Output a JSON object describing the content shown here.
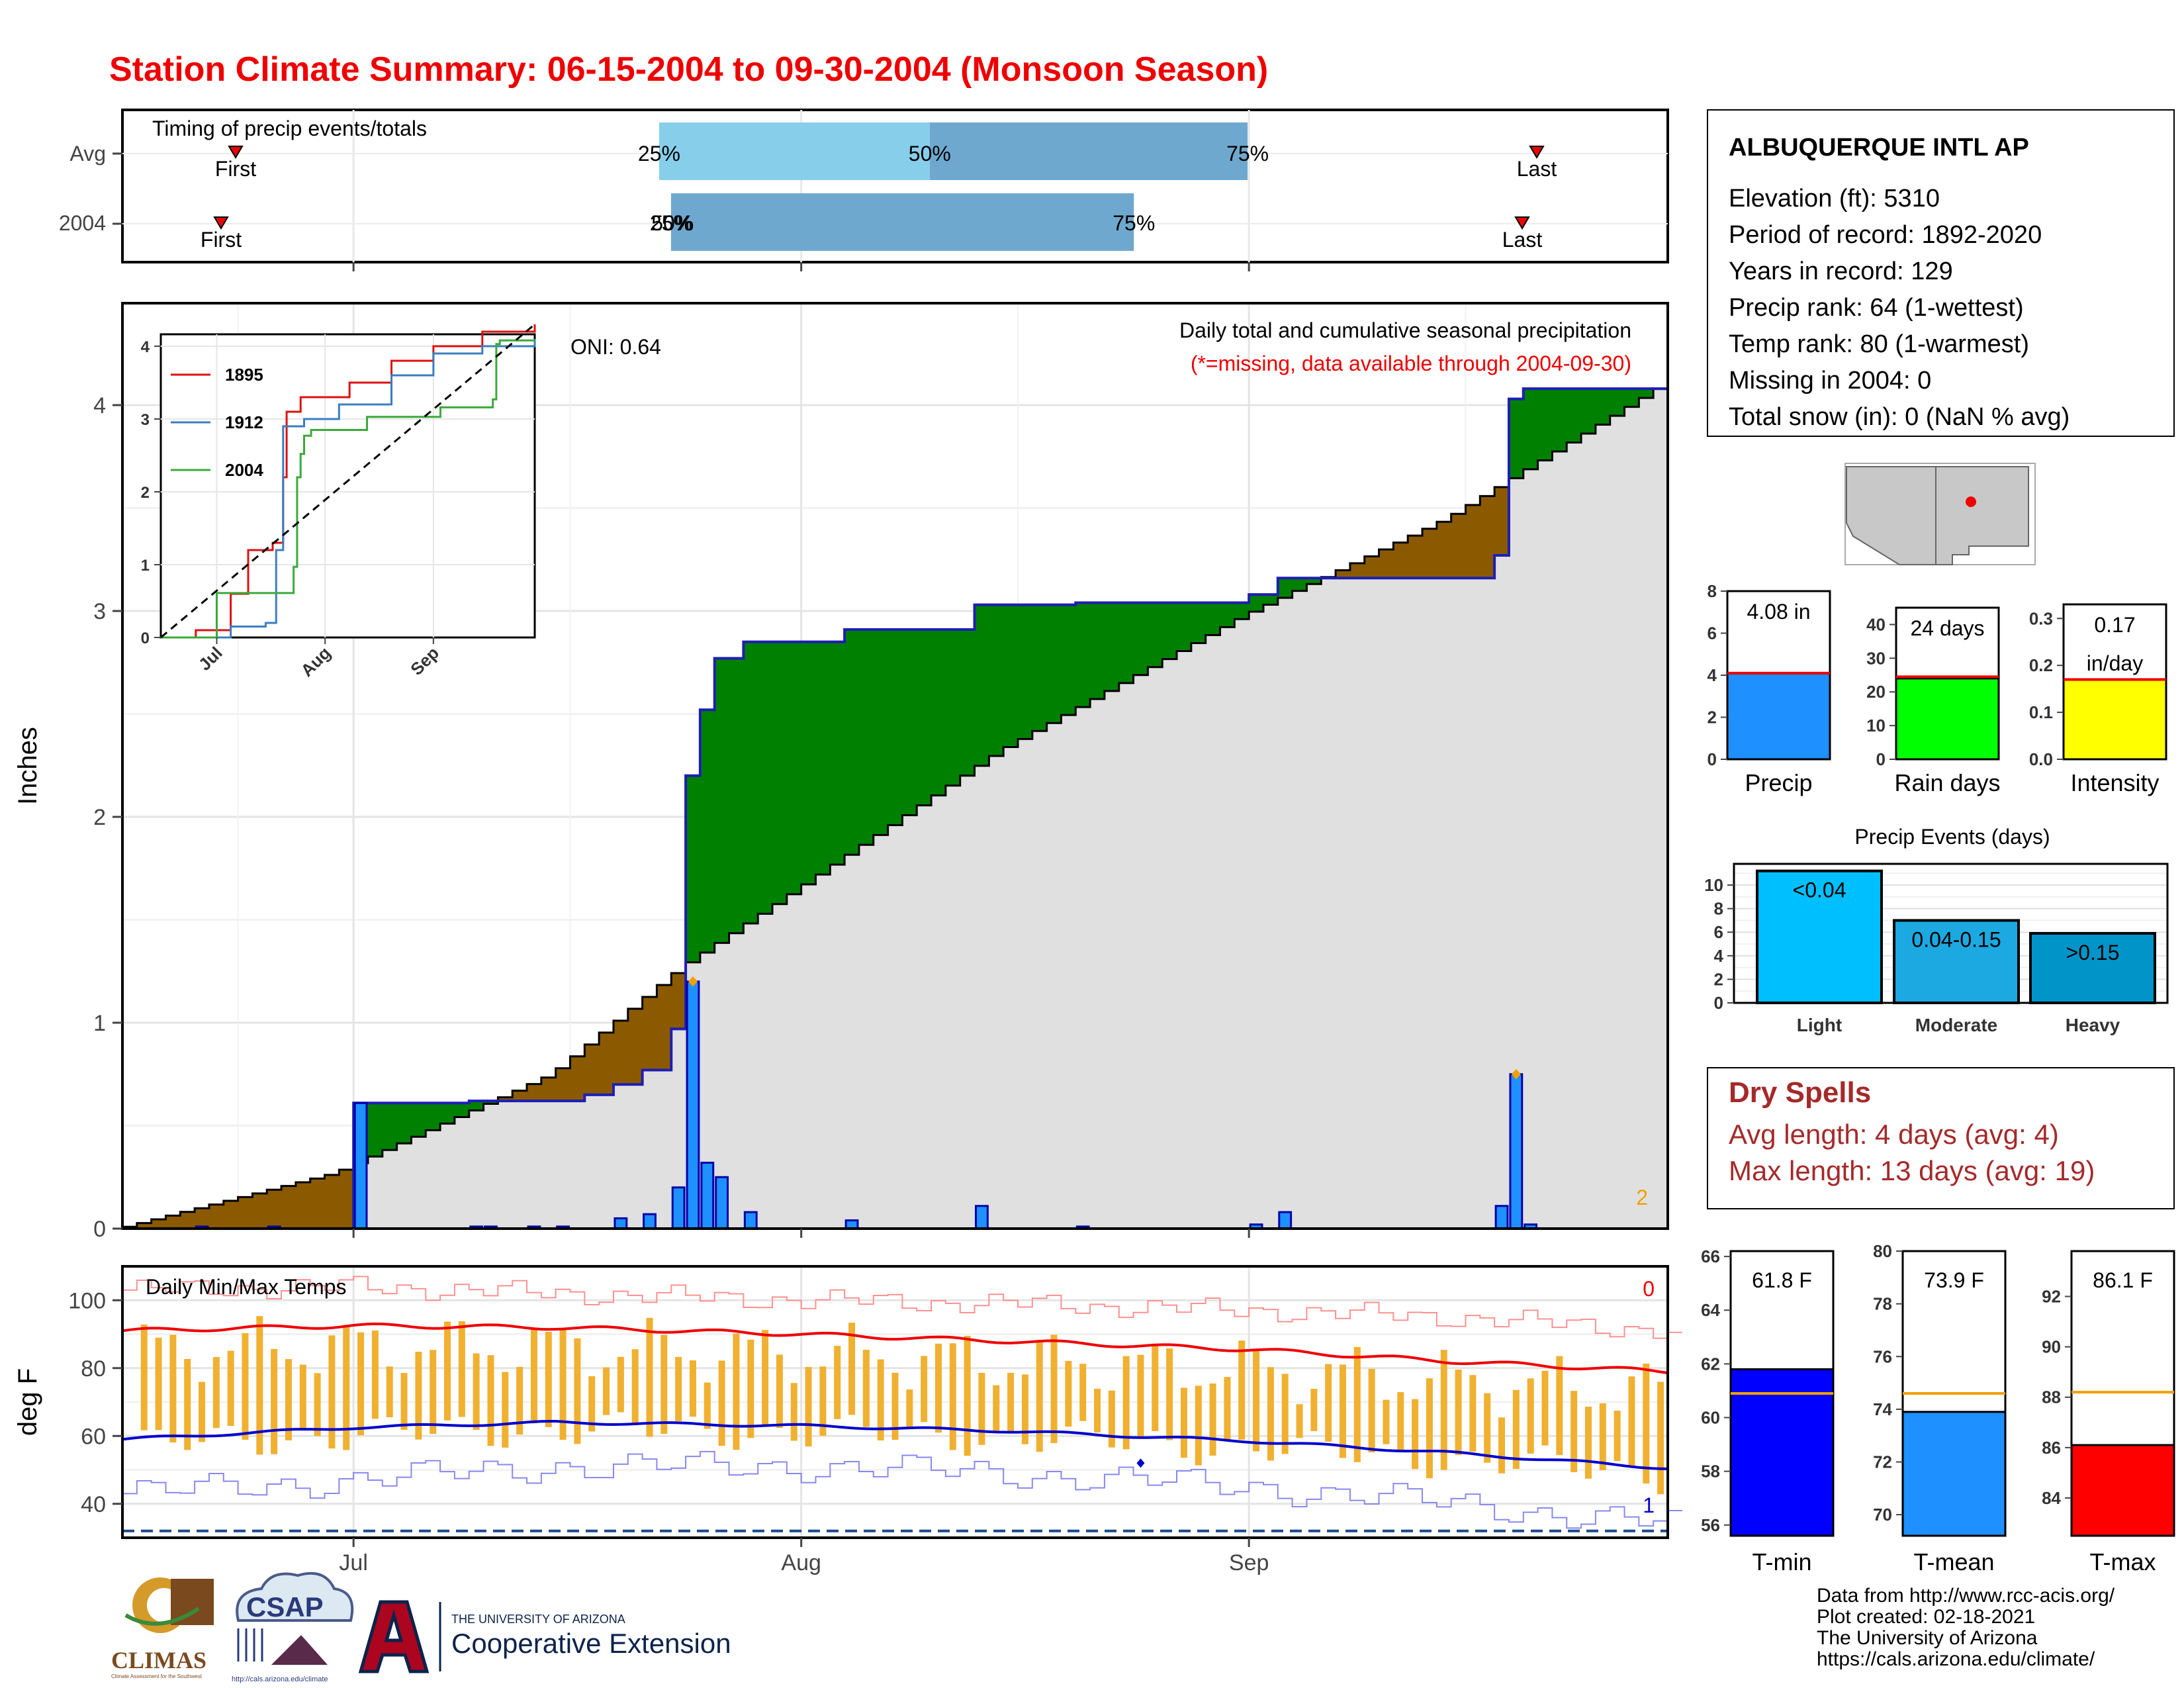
{
  "title": "Station Climate Summary: 06-15-2004 to 09-30-2004 (Monsoon Season)",
  "colors": {
    "title": "#ee0000",
    "dry": "#8b5a00",
    "wet": "#008000",
    "fill": "#e0e0e0",
    "step_line": "#1e1eb4",
    "precip_bar": "#1e90ff",
    "temp_bar": "#f0b030",
    "tmax": "#ee0000",
    "tmin": "#0000cc",
    "record_max": "#ff9090",
    "record_min": "#8888ee",
    "dry_spell_text": "#a52a2a"
  },
  "timing": {
    "label": "Timing of precip events/totals",
    "rows": [
      {
        "name": "Avg",
        "first_label": "First",
        "last_label": "Last",
        "q25": "25%",
        "q50": "50%",
        "q75": "75%"
      },
      {
        "name": "2004",
        "first_label": "First",
        "last_label": "Last",
        "q25": "25%",
        "q50": "50%",
        "q75": "75%"
      }
    ]
  },
  "precip_panel": {
    "ylabel": "Inches",
    "yticks": [
      "0",
      "1",
      "2",
      "3",
      "4"
    ],
    "oni": "ONI: 0.64",
    "subtitle": "Daily total and cumulative seasonal precipitation",
    "missing_note": "(*=missing, data available through 2004-09-30)",
    "corner_count": "2"
  },
  "inset": {
    "yticks": [
      "0",
      "1",
      "2",
      "3",
      "4"
    ],
    "xticks": [
      "Jul",
      "Aug",
      "Sep"
    ],
    "legend": [
      "1895",
      "1912",
      "2004"
    ]
  },
  "temp_panel": {
    "label": "Daily Min/Max Temps",
    "ylabel": "deg F",
    "yticks": [
      "40",
      "60",
      "80",
      "100"
    ],
    "record_high_count": "0",
    "record_low_count": "1"
  },
  "xaxis": {
    "ticks": [
      "Jul",
      "Aug",
      "Sep"
    ]
  },
  "station": {
    "name": "ALBUQUERQUE INTL AP",
    "lines": [
      "Elevation (ft): 5310",
      "Period of record: 1892-2020",
      "Years in record: 129",
      "Precip rank: 64 (1-wettest)",
      "Temp rank: 80 (1-warmest)",
      "Missing in 2004: 0",
      "Total snow (in): 0 (NaN % avg)"
    ]
  },
  "summary_bars": [
    {
      "name": "Precip",
      "value_label": "4.08 in",
      "value": 4.08,
      "avg": 4.1,
      "ymax": 8,
      "ticks": [
        "0",
        "2",
        "4",
        "6",
        "8"
      ],
      "color": "#1e90ff"
    },
    {
      "name": "Rain days",
      "value_label": "24 days",
      "value": 24,
      "avg": 24.5,
      "ymax": 45,
      "ticks": [
        "0",
        "10",
        "20",
        "30",
        "40"
      ],
      "color": "#00ff00"
    },
    {
      "name": "Intensity",
      "value_label": "0.17",
      "value_label2": "in/day",
      "value": 0.17,
      "avg": 0.17,
      "ymax": 0.33,
      "ticks": [
        "0.0",
        "0.1",
        "0.2",
        "0.3"
      ],
      "color": "#ffff00"
    }
  ],
  "precip_events": {
    "title": "Precip Events (days)",
    "yticks": [
      "0",
      "2",
      "4",
      "6",
      "8",
      "10"
    ],
    "bars": [
      {
        "cat": "Light",
        "label": "<0.04",
        "value": 11.2,
        "color": "#00bfff"
      },
      {
        "cat": "Moderate",
        "label": "0.04-0.15",
        "value": 7.0,
        "color": "#1ca8e0"
      },
      {
        "cat": "Heavy",
        "label": ">0.15",
        "value": 5.9,
        "color": "#0094c8"
      }
    ]
  },
  "dry_spells": {
    "title": "Dry Spells",
    "avg_line": "Avg length: 4 days (avg: 4)",
    "max_line": "Max length: 13 days (avg: 19)"
  },
  "temp_bars": [
    {
      "name": "T-min",
      "value_label": "61.8 F",
      "value": 61.8,
      "avg": 60.9,
      "ymin": 55.6,
      "ymax": 66.2,
      "ticks": [
        "56",
        "58",
        "60",
        "62",
        "64",
        "66"
      ],
      "color": "#0000ff"
    },
    {
      "name": "T-mean",
      "value_label": "73.9 F",
      "value": 73.9,
      "avg": 74.6,
      "ymin": 69.2,
      "ymax": 80.0,
      "ticks": [
        "70",
        "72",
        "74",
        "76",
        "78",
        "80"
      ],
      "color": "#1e90ff"
    },
    {
      "name": "T-max",
      "value_label": "86.1 F",
      "value": 86.1,
      "avg": 88.2,
      "ymin": 82.5,
      "ymax": 93.8,
      "ticks": [
        "84",
        "86",
        "88",
        "90",
        "92"
      ],
      "color": "#ff0000"
    }
  ],
  "footer": {
    "lines": [
      "Data from http://www.rcc-acis.org/",
      "Plot created: 02-18-2021",
      "The University of Arizona",
      "https://cals.arizona.edu/climate/"
    ],
    "logo_climas": "CLIMAS",
    "logo_climas_sub": "Climate Assessment for the Southwest",
    "logo_csap": "CSAP",
    "logo_csap_url": "http://cals.arizona.edu/climate",
    "logo_ua_top": "THE UNIVERSITY OF ARIZONA",
    "logo_ua_bottom": "Cooperative Extension"
  },
  "chart_data": [
    {
      "type": "bar",
      "title": "Daily total and cumulative seasonal precipitation",
      "ylabel": "Inches",
      "ylim": [
        0,
        4.5
      ],
      "xrange": [
        "2004-06-15",
        "2004-09-30"
      ],
      "daily_precip": [
        {
          "date": "2004-06-20",
          "value": 0.01
        },
        {
          "date": "2004-06-25",
          "value": 0.01
        },
        {
          "date": "2004-07-01",
          "value": 0.61
        },
        {
          "date": "2004-07-09",
          "value": 0.01
        },
        {
          "date": "2004-07-10",
          "value": 0.01
        },
        {
          "date": "2004-07-13",
          "value": 0.01
        },
        {
          "date": "2004-07-15",
          "value": 0.01
        },
        {
          "date": "2004-07-19",
          "value": 0.05
        },
        {
          "date": "2004-07-21",
          "value": 0.07
        },
        {
          "date": "2004-07-23",
          "value": 0.2
        },
        {
          "date": "2004-07-24",
          "value": 1.2
        },
        {
          "date": "2004-07-25",
          "value": 0.32
        },
        {
          "date": "2004-07-26",
          "value": 0.25
        },
        {
          "date": "2004-07-28",
          "value": 0.08
        },
        {
          "date": "2004-08-04",
          "value": 0.04
        },
        {
          "date": "2004-08-13",
          "value": 0.11
        },
        {
          "date": "2004-08-20",
          "value": 0.01
        },
        {
          "date": "2004-09-01",
          "value": 0.02
        },
        {
          "date": "2004-09-03",
          "value": 0.08
        },
        {
          "date": "2004-09-18",
          "value": 0.11
        },
        {
          "date": "2004-09-19",
          "value": 0.75
        },
        {
          "date": "2004-09-20",
          "value": 0.02
        }
      ],
      "cumulative_2004": [
        {
          "date": "2004-06-15",
          "value": 0.0
        },
        {
          "date": "2004-07-01",
          "value": 0.61
        },
        {
          "date": "2004-07-09",
          "value": 0.62
        },
        {
          "date": "2004-07-17",
          "value": 0.65
        },
        {
          "date": "2004-07-19",
          "value": 0.7
        },
        {
          "date": "2004-07-21",
          "value": 0.77
        },
        {
          "date": "2004-07-23",
          "value": 0.97
        },
        {
          "date": "2004-07-24",
          "value": 2.2
        },
        {
          "date": "2004-07-25",
          "value": 2.52
        },
        {
          "date": "2004-07-26",
          "value": 2.77
        },
        {
          "date": "2004-07-28",
          "value": 2.85
        },
        {
          "date": "2004-08-04",
          "value": 2.91
        },
        {
          "date": "2004-08-13",
          "value": 3.03
        },
        {
          "date": "2004-08-20",
          "value": 3.04
        },
        {
          "date": "2004-09-01",
          "value": 3.08
        },
        {
          "date": "2004-09-03",
          "value": 3.16
        },
        {
          "date": "2004-09-18",
          "value": 3.27
        },
        {
          "date": "2004-09-19",
          "value": 4.03
        },
        {
          "date": "2004-09-20",
          "value": 4.08
        }
      ],
      "average_cumulative": [
        {
          "date": "2004-06-15",
          "value": 0.0
        },
        {
          "date": "2004-06-30",
          "value": 0.27
        },
        {
          "date": "2004-07-15",
          "value": 0.75
        },
        {
          "date": "2004-07-24",
          "value": 1.27
        },
        {
          "date": "2004-07-31",
          "value": 1.6
        },
        {
          "date": "2004-08-15",
          "value": 2.32
        },
        {
          "date": "2004-09-01",
          "value": 2.98
        },
        {
          "date": "2004-09-15",
          "value": 3.45
        },
        {
          "date": "2004-09-30",
          "value": 4.1
        }
      ]
    },
    {
      "type": "line",
      "title": "",
      "legend": [
        "1895",
        "1912",
        "2004"
      ],
      "ylim": [
        0,
        4.2
      ],
      "series": [
        {
          "name": "1895",
          "points": [
            {
              "date": "2004-06-15",
              "value": 0
            },
            {
              "date": "2004-06-25",
              "value": 0.1
            },
            {
              "date": "2004-07-05",
              "value": 0.6
            },
            {
              "date": "2004-07-10",
              "value": 1.2
            },
            {
              "date": "2004-07-17",
              "value": 1.3
            },
            {
              "date": "2004-07-20",
              "value": 2.2
            },
            {
              "date": "2004-07-21",
              "value": 3.1
            },
            {
              "date": "2004-07-25",
              "value": 3.3
            },
            {
              "date": "2004-08-08",
              "value": 3.5
            },
            {
              "date": "2004-08-20",
              "value": 3.8
            },
            {
              "date": "2004-09-01",
              "value": 4.0
            },
            {
              "date": "2004-09-15",
              "value": 4.2
            },
            {
              "date": "2004-09-30",
              "value": 4.3
            }
          ]
        },
        {
          "name": "1912",
          "points": [
            {
              "date": "2004-06-15",
              "value": 0
            },
            {
              "date": "2004-07-05",
              "value": 0.15
            },
            {
              "date": "2004-07-15",
              "value": 0.2
            },
            {
              "date": "2004-07-18",
              "value": 1.2
            },
            {
              "date": "2004-07-20",
              "value": 2.9
            },
            {
              "date": "2004-07-26",
              "value": 3.0
            },
            {
              "date": "2004-08-05",
              "value": 3.2
            },
            {
              "date": "2004-08-20",
              "value": 3.6
            },
            {
              "date": "2004-09-01",
              "value": 3.9
            },
            {
              "date": "2004-09-15",
              "value": 4.0
            },
            {
              "date": "2004-09-30",
              "value": 4.1
            }
          ]
        },
        {
          "name": "2004",
          "points": [
            {
              "date": "2004-06-15",
              "value": 0
            },
            {
              "date": "2004-07-01",
              "value": 0.61
            },
            {
              "date": "2004-07-23",
              "value": 0.97
            },
            {
              "date": "2004-07-24",
              "value": 2.2
            },
            {
              "date": "2004-07-25",
              "value": 2.52
            },
            {
              "date": "2004-07-26",
              "value": 2.77
            },
            {
              "date": "2004-07-28",
              "value": 2.85
            },
            {
              "date": "2004-08-13",
              "value": 3.03
            },
            {
              "date": "2004-09-03",
              "value": 3.16
            },
            {
              "date": "2004-09-18",
              "value": 3.27
            },
            {
              "date": "2004-09-19",
              "value": 4.03
            },
            {
              "date": "2004-09-20",
              "value": 4.08
            }
          ]
        }
      ]
    },
    {
      "type": "bar",
      "title": "Daily Min/Max Temps",
      "ylabel": "deg F",
      "ylim": [
        30,
        110
      ],
      "avg_tmax": [
        {
          "date": "2004-06-15",
          "value": 91
        },
        {
          "date": "2004-07-01",
          "value": 92.5
        },
        {
          "date": "2004-07-15",
          "value": 92
        },
        {
          "date": "2004-08-01",
          "value": 90
        },
        {
          "date": "2004-08-15",
          "value": 88
        },
        {
          "date": "2004-09-01",
          "value": 85.5
        },
        {
          "date": "2004-09-15",
          "value": 82
        },
        {
          "date": "2004-09-30",
          "value": 79
        }
      ],
      "avg_tmin": [
        {
          "date": "2004-06-15",
          "value": 59
        },
        {
          "date": "2004-07-01",
          "value": 62.5
        },
        {
          "date": "2004-07-15",
          "value": 64
        },
        {
          "date": "2004-08-01",
          "value": 63
        },
        {
          "date": "2004-08-15",
          "value": 61.5
        },
        {
          "date": "2004-09-01",
          "value": 58.5
        },
        {
          "date": "2004-09-15",
          "value": 55
        },
        {
          "date": "2004-09-30",
          "value": 50.5
        }
      ],
      "record_tmax": [
        {
          "date": "2004-06-15",
          "value": 103
        },
        {
          "date": "2004-07-01",
          "value": 104
        },
        {
          "date": "2004-07-15",
          "value": 102
        },
        {
          "date": "2004-08-01",
          "value": 100
        },
        {
          "date": "2004-08-15",
          "value": 99
        },
        {
          "date": "2004-09-01",
          "value": 97
        },
        {
          "date": "2004-09-15",
          "value": 95
        },
        {
          "date": "2004-09-30",
          "value": 91
        }
      ],
      "record_tmin": [
        {
          "date": "2004-06-15",
          "value": 43
        },
        {
          "date": "2004-07-01",
          "value": 47
        },
        {
          "date": "2004-07-15",
          "value": 51
        },
        {
          "date": "2004-08-01",
          "value": 51
        },
        {
          "date": "2004-08-15",
          "value": 49
        },
        {
          "date": "2004-09-01",
          "value": 45
        },
        {
          "date": "2004-09-15",
          "value": 40
        },
        {
          "date": "2004-09-30",
          "value": 34
        }
      ],
      "daily_range_endpoints": {
        "2004-06-16": [
          60,
          95
        ],
        "2004-07-01": [
          62,
          95
        ],
        "2004-07-24": [
          60,
          80
        ],
        "2004-08-24": [
          53,
          88
        ],
        "2004-09-20": [
          44,
          80
        ],
        "2004-09-30": [
          52,
          68
        ]
      },
      "record_low_count": 1,
      "record_high_count": 0
    }
  ]
}
